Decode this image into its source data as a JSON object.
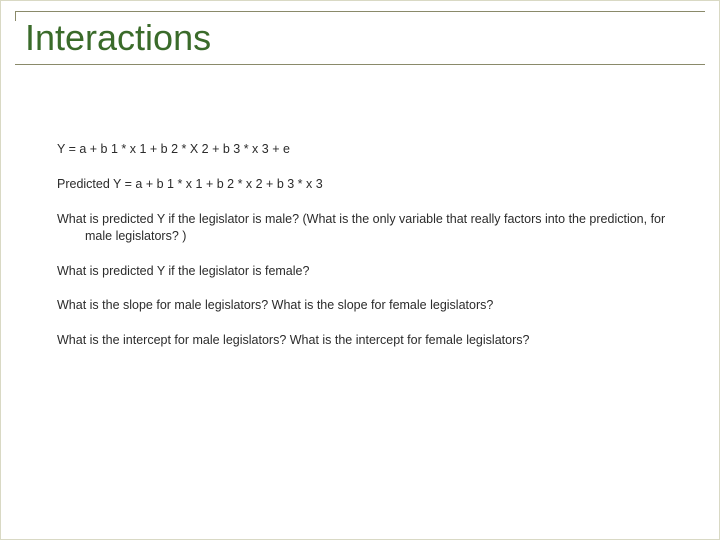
{
  "slide": {
    "title": "Interactions",
    "title_color": "#3a6b2a",
    "rule_color": "#8a8a6a",
    "background_color": "#ffffff",
    "body_font_size_pt": 12.5,
    "title_font_size_pt": 36,
    "body_text_color": "#2b2b2b",
    "paragraphs": [
      "Y = a + b 1 * x 1 + b 2 * X 2 + b 3 * x 3 + e",
      "Predicted Y = a + b 1 * x 1 + b 2 * x 2 + b 3 * x 3",
      "What is predicted Y if the legislator is male?  (What is the only variable that really factors into the prediction, for male legislators? )",
      "What is predicted Y if the legislator is female?",
      "What is the slope for male legislators?  What is the slope for female legislators?",
      "What is the intercept for male legislators?  What is the intercept for female legislators?"
    ]
  }
}
